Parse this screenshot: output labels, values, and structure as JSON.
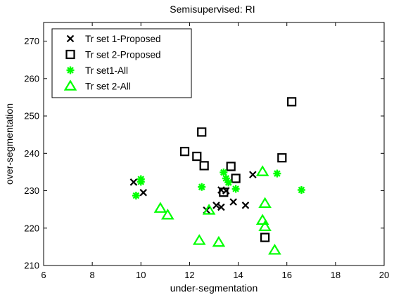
{
  "chart_data": {
    "type": "scatter",
    "title": "Semisupervised: RI",
    "xlabel": "under-segmentation",
    "ylabel": "over-segmentation",
    "xlim": [
      6,
      20
    ],
    "ylim": [
      210,
      275
    ],
    "xticks": [
      6,
      8,
      10,
      12,
      14,
      16,
      18,
      20
    ],
    "yticks": [
      210,
      220,
      230,
      240,
      250,
      260,
      270
    ],
    "grid": false,
    "legend_position": "top-left",
    "series": [
      {
        "name": "Tr set 1-Proposed",
        "marker": "x",
        "color": "#000000",
        "points": [
          [
            9.7,
            232.3
          ],
          [
            10.1,
            229.5
          ],
          [
            12.7,
            224.8
          ],
          [
            13.1,
            226.1
          ],
          [
            13.3,
            225.6
          ],
          [
            13.3,
            230.2
          ],
          [
            13.5,
            230.0
          ],
          [
            13.8,
            227.0
          ],
          [
            14.3,
            226.1
          ],
          [
            14.6,
            234.3
          ]
        ]
      },
      {
        "name": "Tr set 2-Proposed",
        "marker": "square",
        "color": "#000000",
        "points": [
          [
            11.8,
            240.5
          ],
          [
            12.3,
            239.2
          ],
          [
            12.5,
            245.7
          ],
          [
            12.6,
            236.7
          ],
          [
            13.4,
            229.6
          ],
          [
            13.7,
            236.5
          ],
          [
            13.9,
            233.3
          ],
          [
            15.1,
            217.5
          ],
          [
            15.8,
            238.8
          ],
          [
            16.2,
            253.8
          ]
        ]
      },
      {
        "name": "Tr set1-All",
        "marker": "asterisk",
        "color": "#00ff00",
        "points": [
          [
            9.8,
            228.7
          ],
          [
            10.0,
            232.4
          ],
          [
            10.0,
            233.1
          ],
          [
            12.5,
            231.0
          ],
          [
            13.4,
            234.9
          ],
          [
            13.5,
            233.3
          ],
          [
            13.6,
            232.2
          ],
          [
            13.9,
            230.5
          ],
          [
            15.6,
            234.6
          ],
          [
            16.6,
            230.2
          ]
        ]
      },
      {
        "name": "Tr set 2-All",
        "marker": "triangle",
        "color": "#00ff00",
        "points": [
          [
            10.8,
            225.3
          ],
          [
            11.1,
            223.5
          ],
          [
            12.4,
            216.7
          ],
          [
            12.8,
            224.8
          ],
          [
            13.2,
            216.2
          ],
          [
            15.0,
            235.1
          ],
          [
            15.0,
            222.1
          ],
          [
            15.1,
            220.4
          ],
          [
            15.1,
            226.6
          ],
          [
            15.5,
            214.1
          ]
        ]
      }
    ]
  }
}
